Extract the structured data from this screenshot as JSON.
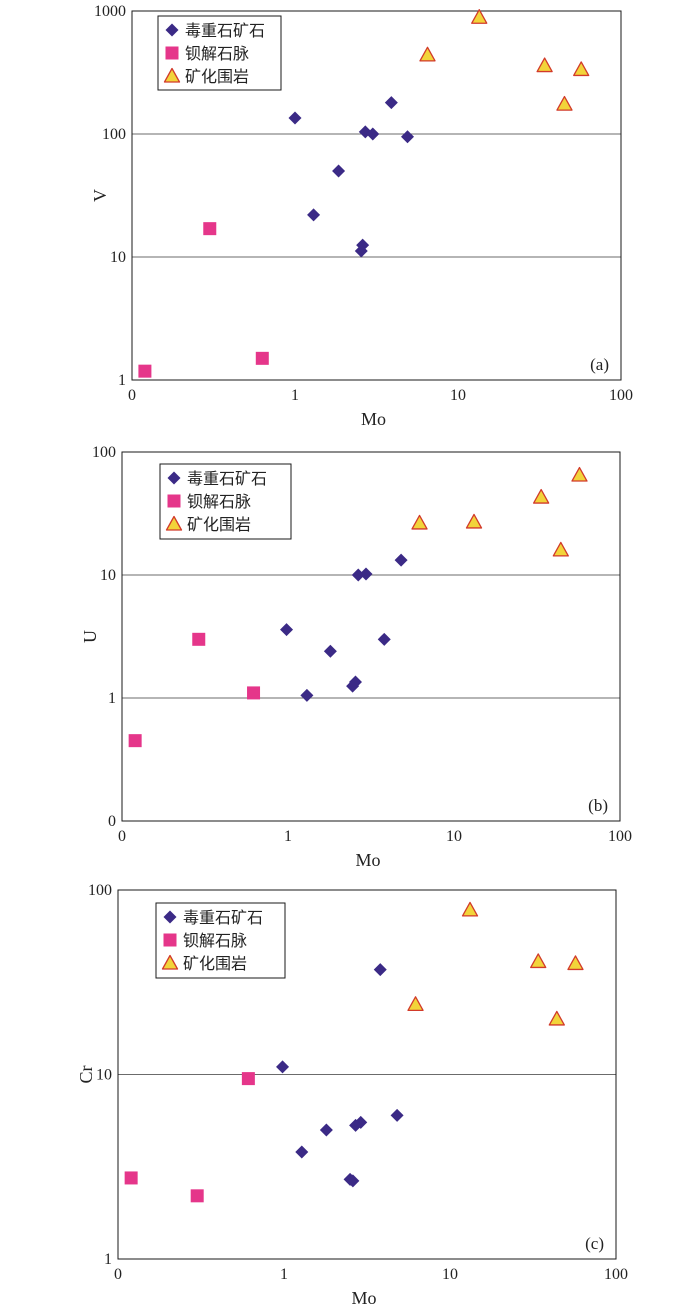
{
  "colors": {
    "frame": "#1a1a1a",
    "grid": "#6b6b6b",
    "series": [
      "#3b2a86",
      "#e5368a",
      "#f2d43a"
    ],
    "triangle_edge": "#d23a2a"
  },
  "chart_data": [
    {
      "type": "scatter",
      "panel_label": "(a)",
      "xlabel": "Mo",
      "ylabel": "V",
      "x_scale": "log",
      "y_scale": "log",
      "xlim": [
        0.1,
        100
      ],
      "ylim": [
        1,
        1000
      ],
      "x_ticks": [
        {
          "v": 0.1,
          "label": "0"
        },
        {
          "v": 1,
          "label": "1"
        },
        {
          "v": 10,
          "label": "10"
        },
        {
          "v": 100,
          "label": "100"
        }
      ],
      "y_ticks": [
        {
          "v": 1,
          "label": "1"
        },
        {
          "v": 10,
          "label": "10"
        },
        {
          "v": 100,
          "label": "100"
        },
        {
          "v": 1000,
          "label": "1000"
        }
      ],
      "grid": "horizontal",
      "legend_position": "top-left",
      "series": [
        {
          "name": "毒重石矿石",
          "marker": "diamond",
          "points": [
            [
              1.0,
              135
            ],
            [
              3.9,
              180
            ],
            [
              2.7,
              104
            ],
            [
              3.0,
              100
            ],
            [
              4.9,
              95
            ],
            [
              1.85,
              50
            ],
            [
              1.3,
              22
            ],
            [
              2.6,
              12.5
            ],
            [
              2.55,
              11.2
            ]
          ]
        },
        {
          "name": "钡解石脉",
          "marker": "square",
          "points": [
            [
              0.3,
              17
            ],
            [
              0.63,
              1.5
            ],
            [
              0.12,
              1.18
            ]
          ]
        },
        {
          "name": "矿化围岩",
          "marker": "triangle",
          "points": [
            [
              13.5,
              890
            ],
            [
              6.5,
              440
            ],
            [
              34,
              360
            ],
            [
              57,
              335
            ],
            [
              45,
              175
            ]
          ]
        }
      ]
    },
    {
      "type": "scatter",
      "panel_label": "(b)",
      "xlabel": "Mo",
      "ylabel": "U",
      "x_scale": "log",
      "y_scale": "log",
      "xlim": [
        0.1,
        100
      ],
      "ylim": [
        0.1,
        100
      ],
      "x_ticks": [
        {
          "v": 0.1,
          "label": "0"
        },
        {
          "v": 1,
          "label": "1"
        },
        {
          "v": 10,
          "label": "10"
        },
        {
          "v": 100,
          "label": "100"
        }
      ],
      "y_ticks": [
        {
          "v": 0.1,
          "label": "0"
        },
        {
          "v": 1,
          "label": "1"
        },
        {
          "v": 10,
          "label": "10"
        },
        {
          "v": 100,
          "label": "100"
        }
      ],
      "grid": "horizontal",
      "legend_position": "top-left",
      "series": [
        {
          "name": "毒重石矿石",
          "marker": "diamond",
          "points": [
            [
              0.98,
              3.6
            ],
            [
              3.8,
              3.0
            ],
            [
              1.8,
              2.4
            ],
            [
              1.3,
              1.05
            ],
            [
              2.55,
              1.35
            ],
            [
              2.45,
              1.25
            ],
            [
              2.65,
              10.0
            ],
            [
              2.95,
              10.2
            ],
            [
              4.8,
              13.2
            ]
          ]
        },
        {
          "name": "钡解石脉",
          "marker": "square",
          "points": [
            [
              0.29,
              3.0
            ],
            [
              0.62,
              1.1
            ],
            [
              0.12,
              0.45
            ]
          ]
        },
        {
          "name": "矿化围岩",
          "marker": "triangle",
          "points": [
            [
              6.2,
              26.5
            ],
            [
              13.2,
              27
            ],
            [
              33.5,
              43
            ],
            [
              57,
              65
            ],
            [
              44,
              16
            ]
          ]
        }
      ]
    },
    {
      "type": "scatter",
      "panel_label": "(c)",
      "xlabel": "Mo",
      "ylabel": "Cr",
      "x_scale": "log",
      "y_scale": "log",
      "xlim": [
        0.1,
        100
      ],
      "ylim": [
        1,
        100
      ],
      "x_ticks": [
        {
          "v": 0.1,
          "label": "0"
        },
        {
          "v": 1,
          "label": "1"
        },
        {
          "v": 10,
          "label": "10"
        },
        {
          "v": 100,
          "label": "100"
        }
      ],
      "y_ticks": [
        {
          "v": 1,
          "label": "1"
        },
        {
          "v": 10,
          "label": "10"
        },
        {
          "v": 100,
          "label": "100"
        }
      ],
      "grid": "horizontal",
      "legend_position": "top-left",
      "series": [
        {
          "name": "毒重石矿石",
          "marker": "diamond",
          "points": [
            [
              3.8,
              37
            ],
            [
              0.98,
              11
            ],
            [
              4.8,
              6.0
            ],
            [
              2.9,
              5.5
            ],
            [
              2.7,
              5.3
            ],
            [
              1.8,
              5.0
            ],
            [
              1.28,
              3.8
            ],
            [
              2.5,
              2.7
            ],
            [
              2.6,
              2.65
            ]
          ]
        },
        {
          "name": "钡解石脉",
          "marker": "square",
          "points": [
            [
              0.61,
              9.5
            ],
            [
              0.12,
              2.75
            ],
            [
              0.3,
              2.2
            ]
          ]
        },
        {
          "name": "矿化围岩",
          "marker": "triangle",
          "points": [
            [
              13.2,
              78
            ],
            [
              6.2,
              24
            ],
            [
              34,
              41
            ],
            [
              57,
              40
            ],
            [
              44,
              20
            ]
          ]
        }
      ]
    }
  ]
}
